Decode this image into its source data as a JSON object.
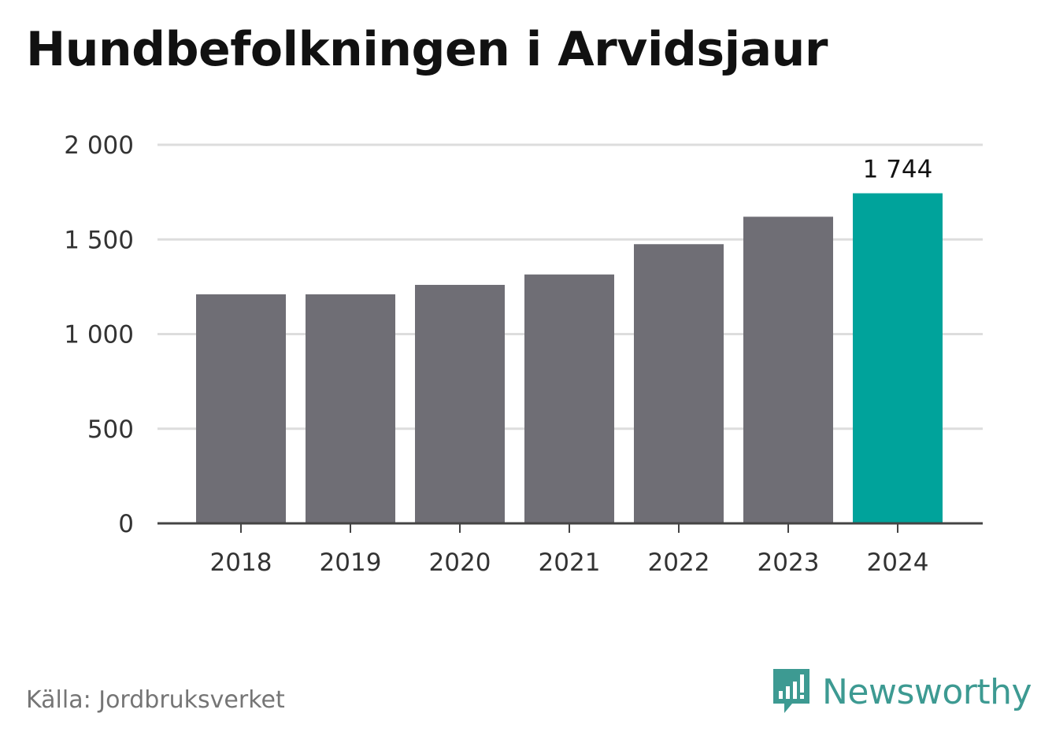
{
  "title": "Hundbefolkningen i Arvidsjaur",
  "source": "Källa: Jordbruksverket",
  "brand": {
    "name": "Newsworthy",
    "icon": "newsworthy-logo-icon",
    "color": "#3d9a92"
  },
  "colors": {
    "bar": "#6f6e75",
    "highlight": "#00a39b",
    "grid": "#dddddd",
    "axis": "#444444",
    "text": "#333333"
  },
  "chart_data": {
    "type": "bar",
    "categories": [
      "2018",
      "2019",
      "2020",
      "2021",
      "2022",
      "2023",
      "2024"
    ],
    "values": [
      1210,
      1210,
      1260,
      1315,
      1475,
      1620,
      1744
    ],
    "highlight_index": 6,
    "value_labels": [
      {
        "index": 6,
        "text": "1 744"
      }
    ],
    "ylim": [
      0,
      2000
    ],
    "yticks": [
      0,
      500,
      1000,
      1500,
      2000
    ],
    "ytick_labels": [
      "0",
      "500",
      "1 000",
      "1 500",
      "2 000"
    ],
    "xlabel": "",
    "ylabel": "",
    "grid": true,
    "legend": "none"
  }
}
